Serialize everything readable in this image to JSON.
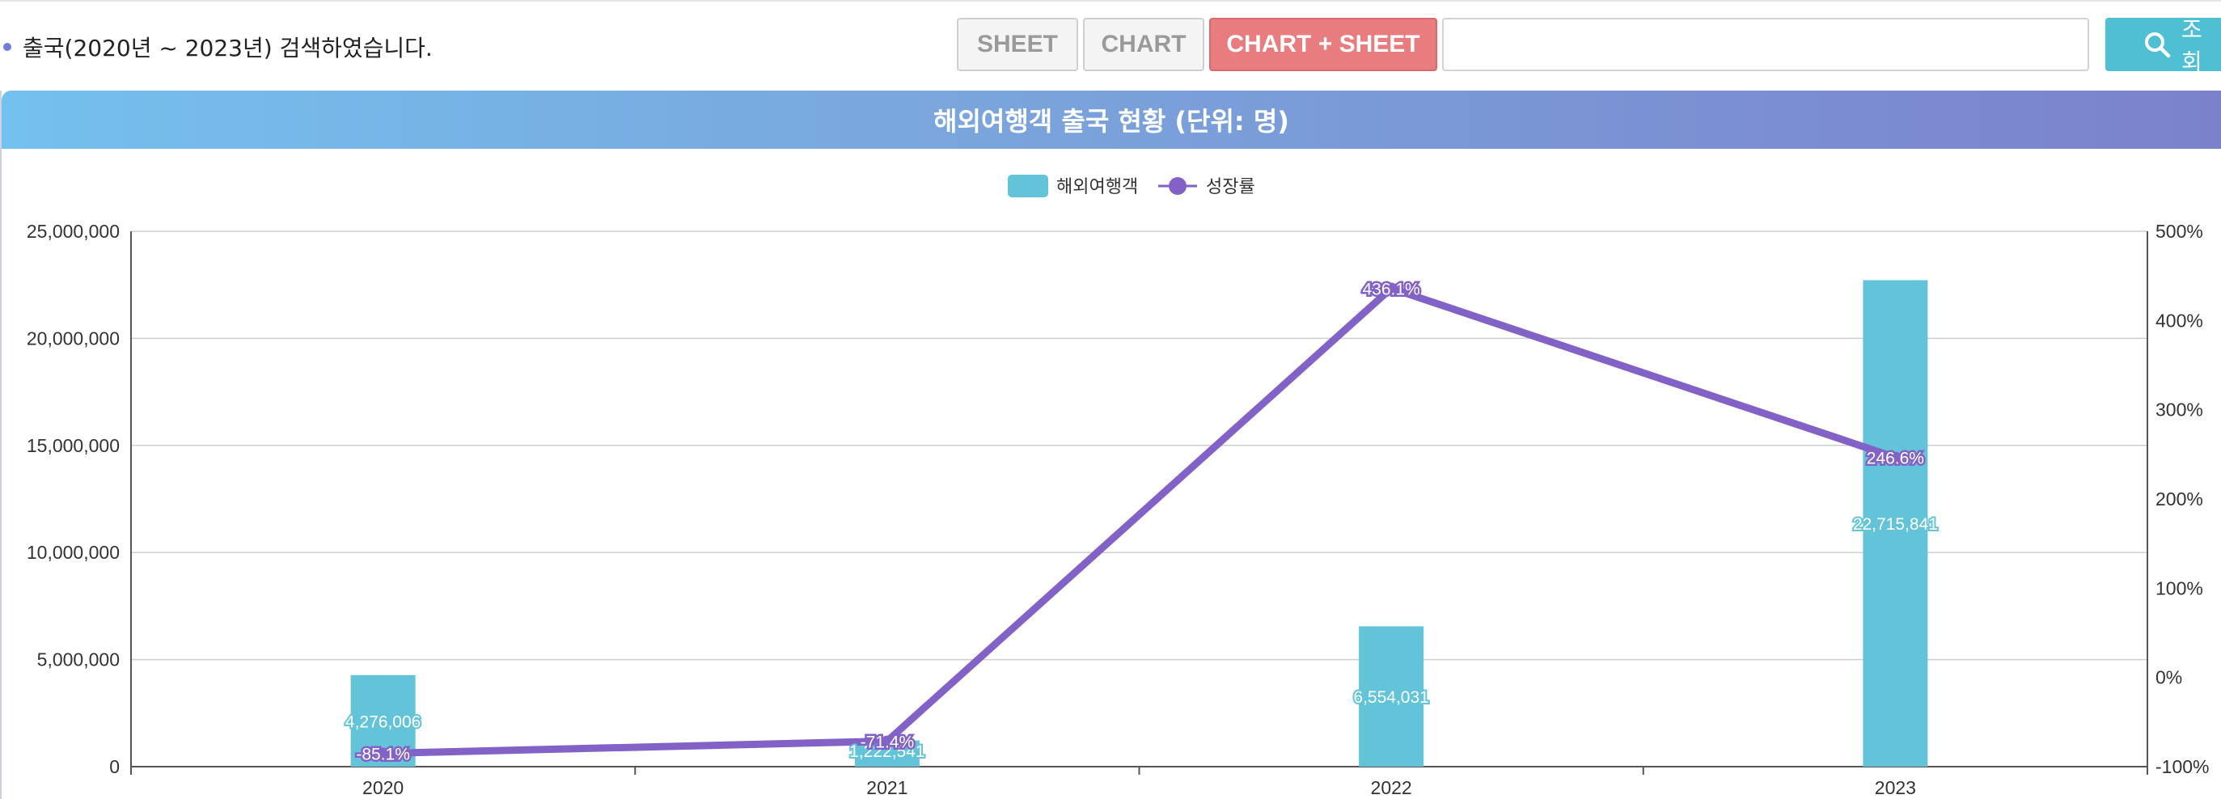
{
  "search": {
    "message": "출국(2020년 ~ 2023년) 검색하였습니다.",
    "sheet_label": "SHEET",
    "chart_label": "CHART",
    "both_label": "CHART + SHEET",
    "input_value": "",
    "query_label": "조회"
  },
  "panel": {
    "title": "해외여행객 출국 현황 (단위: 명)"
  },
  "colors": {
    "bar": "#62c3d9",
    "line": "#8262c6",
    "selected_button": "#e87c7f"
  },
  "chart_data": {
    "type": "bar",
    "categories": [
      "2020",
      "2021",
      "2022",
      "2023"
    ],
    "series": [
      {
        "name": "해외여행객",
        "type": "bar",
        "axis": "left",
        "values": [
          4276006,
          1222541,
          6554031,
          22715841
        ],
        "labels": [
          "4,276,006",
          "1,222,541",
          "6,554,031",
          "22,715,841"
        ]
      },
      {
        "name": "성장률",
        "type": "line",
        "axis": "right",
        "values": [
          -85.1,
          -71.4,
          436.1,
          246.6
        ],
        "labels": [
          "-85.1%",
          "-71.4%",
          "436.1%",
          "246.6%"
        ]
      }
    ],
    "y_left": {
      "range": [
        0,
        25000000
      ],
      "ticks": [
        0,
        5000000,
        10000000,
        15000000,
        20000000,
        25000000
      ],
      "tick_labels": [
        "0",
        "5,000,000",
        "10,000,000",
        "15,000,000",
        "20,000,000",
        "25,000,000"
      ]
    },
    "y_right": {
      "range": [
        -100,
        500
      ],
      "ticks": [
        -100,
        0,
        100,
        200,
        300,
        400,
        500
      ],
      "tick_labels": [
        "-100%",
        "0%",
        "100%",
        "200%",
        "300%",
        "400%",
        "500%"
      ]
    },
    "grid": true,
    "legend": "top-center"
  }
}
